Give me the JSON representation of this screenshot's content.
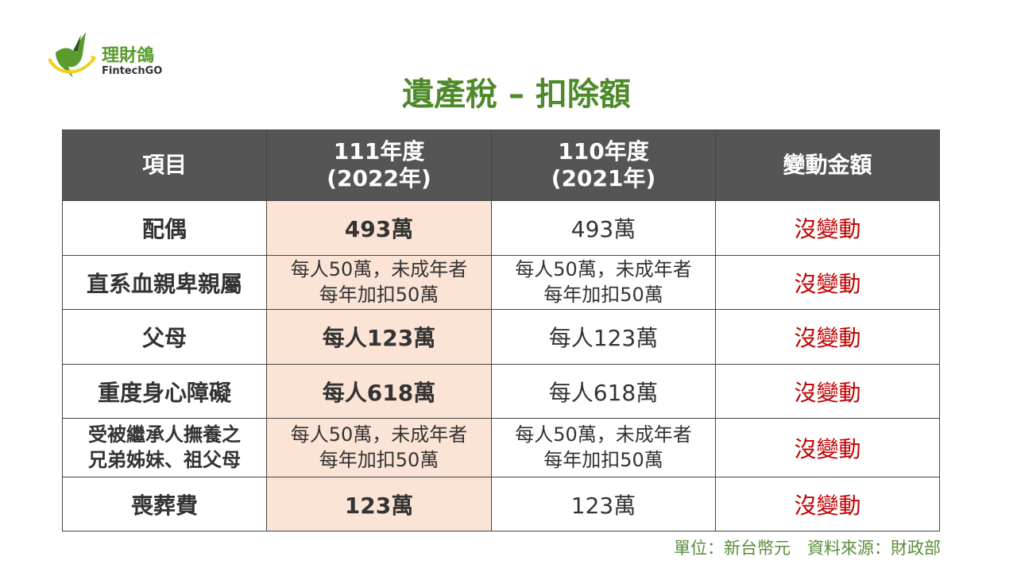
{
  "logo": {
    "name_cn": "理財鴿",
    "name_en": "FintechGO",
    "colors": {
      "green": "#5a9a2e",
      "yellow": "#f0d020"
    }
  },
  "title": "遺產稅 – 扣除額",
  "table": {
    "headers": [
      [
        "項目"
      ],
      [
        "111年度",
        "(2022年)"
      ],
      [
        "110年度",
        "(2021年)"
      ],
      [
        "變動金額"
      ]
    ],
    "rows": [
      {
        "item": [
          "配偶"
        ],
        "y2022": [
          "493萬"
        ],
        "y2021": [
          "493萬"
        ],
        "change": "沒變動"
      },
      {
        "item": [
          "直系血親卑親屬"
        ],
        "y2022": [
          "每人50萬，未成年者",
          "每年加扣50萬"
        ],
        "y2021": [
          "每人50萬，未成年者",
          "每年加扣50萬"
        ],
        "change": "沒變動"
      },
      {
        "item": [
          "父母"
        ],
        "y2022": [
          "每人123萬"
        ],
        "y2021": [
          "每人123萬"
        ],
        "change": "沒變動"
      },
      {
        "item": [
          "重度身心障礙"
        ],
        "y2022": [
          "每人618萬"
        ],
        "y2021": [
          "每人618萬"
        ],
        "change": "沒變動"
      },
      {
        "item": [
          "受被繼承人撫養之",
          "兄弟姊妹、祖父母"
        ],
        "y2022": [
          "每人50萬，未成年者",
          "每年加扣50萬"
        ],
        "y2021": [
          "每人50萬，未成年者",
          "每年加扣50萬"
        ],
        "change": "沒變動"
      },
      {
        "item": [
          "喪葬費"
        ],
        "y2022": [
          "123萬"
        ],
        "y2021": [
          "123萬"
        ],
        "change": "沒變動"
      }
    ],
    "colors": {
      "header_bg": "#555555",
      "highlight_col": "#fbe4d5",
      "change_text": "#c00000"
    }
  },
  "footer": "單位：新台幣元　資料來源：財政部"
}
